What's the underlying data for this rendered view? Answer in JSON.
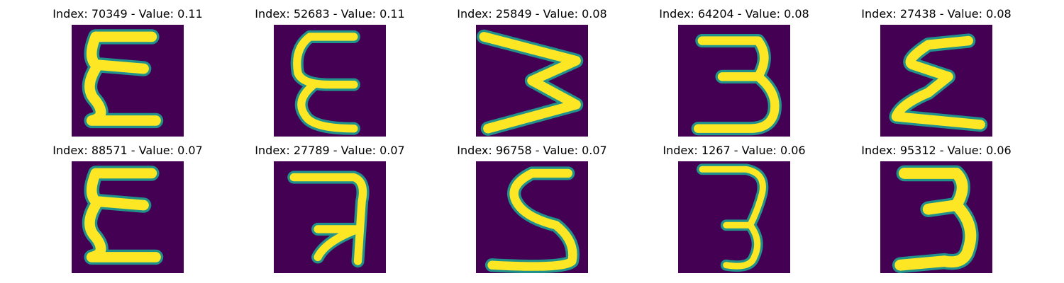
{
  "colors": {
    "background": "#440154",
    "stroke": "#fde725",
    "edge": "#21918c"
  },
  "panels": [
    {
      "title": "Index: 70349 - Value: 0.11",
      "glyph": "epsilon-wide"
    },
    {
      "title": "Index: 52683 - Value: 0.11",
      "glyph": "epsilon-narrow"
    },
    {
      "title": "Index: 25849 - Value: 0.08",
      "glyph": "rotated-w"
    },
    {
      "title": "Index: 64204 - Value: 0.08",
      "glyph": "three"
    },
    {
      "title": "Index: 27438 - Value: 0.08",
      "glyph": "sigma"
    },
    {
      "title": "Index: 88571 - Value: 0.07",
      "glyph": "epsilon-wide"
    },
    {
      "title": "Index: 27789 - Value: 0.07",
      "glyph": "hook"
    },
    {
      "title": "Index: 96758 - Value: 0.07",
      "glyph": "five"
    },
    {
      "title": "Index: 1267 - Value: 0.06",
      "glyph": "three-thin"
    },
    {
      "title": "Index: 95312 - Value: 0.06",
      "glyph": "three-bold"
    }
  ]
}
